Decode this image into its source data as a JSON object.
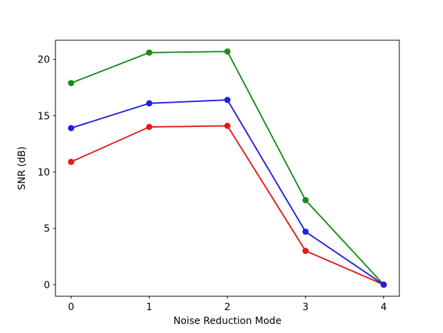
{
  "figure": {
    "background": "#ffffff",
    "spine_color": "#000000",
    "text_color": "#000000"
  },
  "chart_data": {
    "type": "line",
    "title": "",
    "xlabel": "Noise Reduction Mode",
    "ylabel": "SNR (dB)",
    "x": [
      0,
      1,
      2,
      3,
      4
    ],
    "xtick_labels": [
      "0",
      "1",
      "2",
      "3",
      "4"
    ],
    "yticks": [
      0,
      5,
      10,
      15,
      20
    ],
    "ytick_labels": [
      "0",
      "5",
      "10",
      "15",
      "20"
    ],
    "xlim": [
      -0.2,
      4.2
    ],
    "ylim": [
      -1.03,
      21.7
    ],
    "grid": false,
    "legend": "none",
    "marker": "circle",
    "marker_radius": 4.5,
    "line_width": 2,
    "series": [
      {
        "name": "red-series",
        "color": "#e31a1a",
        "values": [
          10.9,
          14.0,
          14.1,
          3.0,
          0.0
        ]
      },
      {
        "name": "green-series",
        "color": "#1a8c1a",
        "values": [
          17.9,
          20.6,
          20.7,
          7.5,
          0.0
        ]
      },
      {
        "name": "blue-series",
        "color": "#1f1fe0",
        "values": [
          13.9,
          16.1,
          16.4,
          4.7,
          0.0
        ]
      }
    ]
  }
}
